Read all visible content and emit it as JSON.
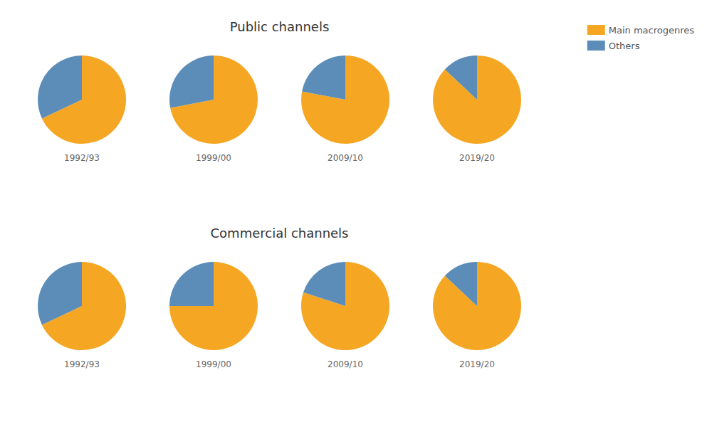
{
  "chart_data": [
    {
      "type": "pie",
      "title": "Public channels",
      "categories": [
        "1992/93",
        "1999/00",
        "2009/10",
        "2019/20"
      ],
      "series": [
        {
          "name": "Main macrogenres",
          "color": "#F5A623",
          "values": [
            0.68,
            0.72,
            0.78,
            0.87
          ]
        },
        {
          "name": "Others",
          "color": "#5B8DB8",
          "values": [
            0.32,
            0.28,
            0.22,
            0.13
          ]
        }
      ],
      "legend": "upper right"
    },
    {
      "type": "pie",
      "title": "Commercial channels",
      "categories": [
        "1992/93",
        "1999/00",
        "2009/10",
        "2019/20"
      ],
      "series": [
        {
          "name": "Main macrogenres",
          "color": "#F5A623",
          "values": [
            0.68,
            0.75,
            0.8,
            0.87
          ]
        },
        {
          "name": "Others",
          "color": "#5B8DB8",
          "values": [
            0.32,
            0.25,
            0.2,
            0.13
          ]
        }
      ]
    }
  ]
}
